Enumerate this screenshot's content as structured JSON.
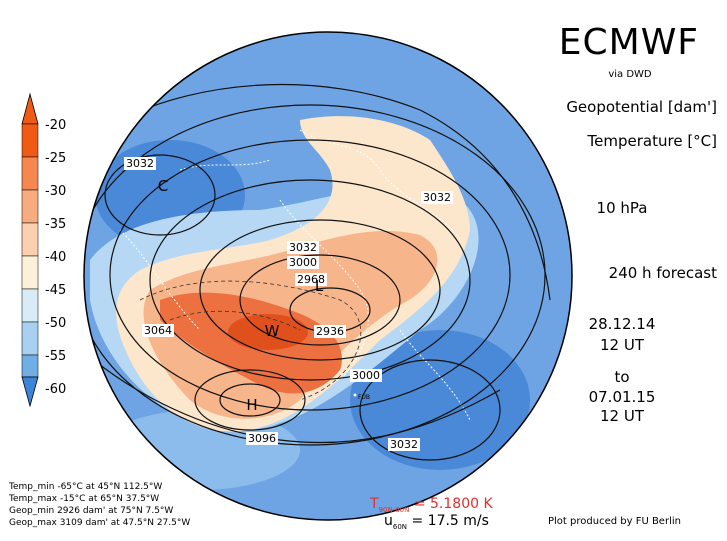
{
  "header": {
    "model": "ECMWF",
    "source": "via DWD",
    "field1": "Geopotential [dam']",
    "field2": "Temperature [°C]",
    "level": "10 hPa",
    "forecast": "240 h forecast"
  },
  "times": {
    "init_date": "28.12.14",
    "init_time": "12 UT",
    "to": "to",
    "valid_date": "07.01.15",
    "valid_time": "12 UT"
  },
  "colorbar": {
    "ticks": [
      "-20",
      "-25",
      "-30",
      "-35",
      "-40",
      "-45",
      "-50",
      "-55",
      "-60"
    ],
    "colors": [
      "#f05a14",
      "#f48850",
      "#f7ac80",
      "#fad0b0",
      "#fdf0d8",
      "#d8ecf8",
      "#a8d0f0",
      "#70aee6",
      "#3c84d8"
    ]
  },
  "map": {
    "contour_labels": [
      "3032",
      "3032",
      "3032",
      "3000",
      "2968",
      "2936",
      "3064",
      "3000",
      "3096",
      "3032"
    ],
    "markers": [
      "C",
      "L",
      "W",
      "H"
    ],
    "city_label": "FUB",
    "colors": {
      "warm_core": "#e8602a",
      "warm": "#f5a77c",
      "cool": "#8fc0ee",
      "cold": "#4f8fdb"
    }
  },
  "stats": {
    "temp_min": "Temp_min -65°C at 45°N 112.5°W",
    "temp_max": "Temp_max -15°C at 65°N 37.5°W",
    "geop_min": "Geop_min 2926 dam' at 75°N 7.5°W",
    "geop_max": "Geop_max 3109 dam' at 47.5°N 27.5°W"
  },
  "indices": {
    "temp_symbol": "T",
    "temp_subscript": "90N-60N",
    "temp_value": "= 5.1800 K",
    "wind_symbol": "u",
    "wind_subscript": "60N",
    "wind_value": "= 17.5 m/s",
    "temp_color": "#e03030"
  },
  "footer": {
    "credit": "Plot produced by FU Berlin"
  }
}
